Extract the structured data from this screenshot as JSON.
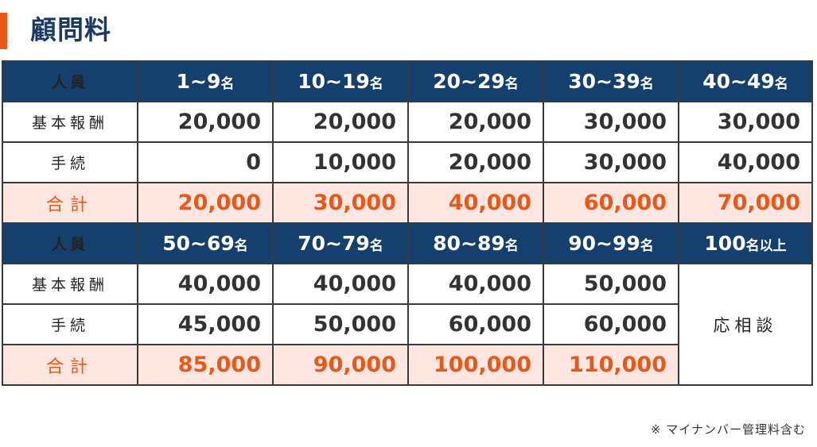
{
  "title": "顧問料",
  "accent_color": "#e85a1a",
  "header_color": "#15406e",
  "total_color": "#e8581a",
  "total_bg": "#fde6e0",
  "table1": {
    "header_label": "人員",
    "columns": [
      {
        "range": "1~9",
        "unit": "名"
      },
      {
        "range": "10~19",
        "unit": "名"
      },
      {
        "range": "20~29",
        "unit": "名"
      },
      {
        "range": "30~39",
        "unit": "名"
      },
      {
        "range": "40~49",
        "unit": "名"
      }
    ],
    "rows": [
      {
        "label": "基本報酬",
        "values": [
          "20,000",
          "20,000",
          "20,000",
          "30,000",
          "30,000"
        ]
      },
      {
        "label": "手続",
        "values": [
          "0",
          "10,000",
          "20,000",
          "30,000",
          "40,000"
        ]
      },
      {
        "label": "合計",
        "values": [
          "20,000",
          "30,000",
          "40,000",
          "60,000",
          "70,000"
        ]
      }
    ]
  },
  "table2": {
    "header_label": "人員",
    "columns": [
      {
        "range": "50~69",
        "unit": "名"
      },
      {
        "range": "70~79",
        "unit": "名"
      },
      {
        "range": "80~89",
        "unit": "名"
      },
      {
        "range": "90~99",
        "unit": "名"
      },
      {
        "range": "100",
        "unit": "名以上"
      }
    ],
    "rows": [
      {
        "label": "基本報酬",
        "values": [
          "40,000",
          "40,000",
          "40,000",
          "50,000"
        ]
      },
      {
        "label": "手続",
        "values": [
          "45,000",
          "50,000",
          "60,000",
          "60,000"
        ]
      },
      {
        "label": "合計",
        "values": [
          "85,000",
          "90,000",
          "100,000",
          "110,000"
        ]
      }
    ],
    "consult_label": "応相談"
  },
  "note": "※ マイナンバー管理料含む"
}
